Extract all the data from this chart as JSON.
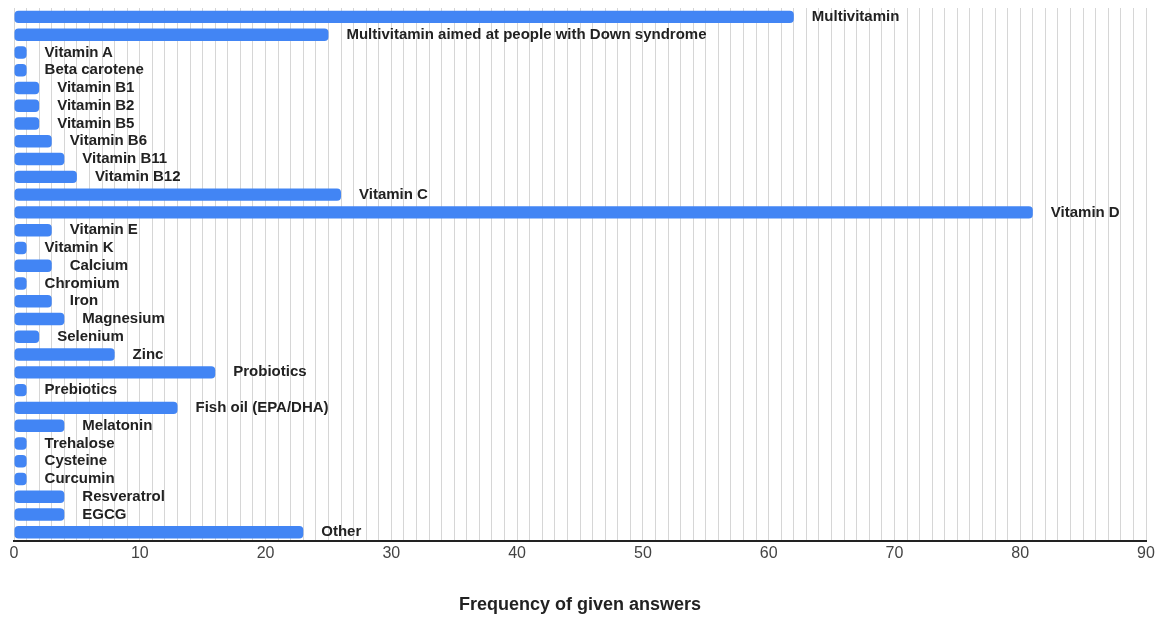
{
  "chart_data": {
    "type": "bar",
    "orientation": "horizontal",
    "xlabel": "Frequency of given answers",
    "tick_labels": "x",
    "grid": "x",
    "legend": false,
    "categories": [
      "Multivitamin",
      "Multivitamin aimed at people with Down syndrome",
      "Vitamin A",
      "Beta carotene",
      "Vitamin B1",
      "Vitamin B2",
      "Vitamin B5",
      "Vitamin B6",
      "Vitamin B11",
      "Vitamin B12",
      "Vitamin C",
      "Vitamin D",
      "Vitamin E",
      "Vitamin K",
      "Calcium",
      "Chromium",
      "Iron",
      "Magnesium",
      "Selenium",
      "Zinc",
      "Probiotics",
      "Prebiotics",
      "Fish oil (EPA/DHA)",
      "Melatonin",
      "Trehalose",
      "Cysteine",
      "Curcumin",
      "Resveratrol",
      "EGCG",
      "Other"
    ],
    "values": [
      62,
      25,
      1,
      1,
      2,
      2,
      2,
      3,
      4,
      5,
      26,
      81,
      3,
      1,
      3,
      1,
      3,
      4,
      2,
      8,
      16,
      1,
      13,
      4,
      1,
      1,
      1,
      4,
      4,
      23
    ],
    "color": "#4285f4",
    "xlim": [
      0,
      90
    ],
    "xticks": [
      0,
      {
        "value": 1,
        "label": null
      },
      {
        "value": 2,
        "label": null
      },
      {
        "value": 3,
        "label": null
      },
      {
        "value": 4,
        "label": null
      },
      {
        "value": 5,
        "label": null
      },
      {
        "value": 6,
        "label": null
      },
      {
        "value": 7,
        "label": null
      },
      {
        "value": 8,
        "label": null
      },
      {
        "value": 9,
        "label": null
      },
      10,
      {
        "value": 11,
        "label": null
      },
      {
        "value": 12,
        "label": null
      },
      {
        "value": 13,
        "label": null
      },
      {
        "value": 14,
        "label": null
      },
      {
        "value": 15,
        "label": null
      },
      {
        "value": 16,
        "label": null
      },
      {
        "value": 17,
        "label": null
      },
      {
        "value": 18,
        "label": null
      },
      {
        "value": 19,
        "label": null
      },
      20,
      {
        "value": 21,
        "label": null
      },
      {
        "value": 22,
        "label": null
      },
      {
        "value": 23,
        "label": null
      },
      {
        "value": 24,
        "label": null
      },
      {
        "value": 25,
        "label": null
      },
      {
        "value": 26,
        "label": null
      },
      {
        "value": 27,
        "label": null
      },
      {
        "value": 28,
        "label": null
      },
      {
        "value": 29,
        "label": null
      },
      30,
      {
        "value": 31,
        "label": null
      },
      {
        "value": 32,
        "label": null
      },
      {
        "value": 33,
        "label": null
      },
      {
        "value": 34,
        "label": null
      },
      {
        "value": 35,
        "label": null
      },
      {
        "value": 36,
        "label": null
      },
      {
        "value": 37,
        "label": null
      },
      {
        "value": 38,
        "label": null
      },
      {
        "value": 39,
        "label": null
      },
      40,
      {
        "value": 41,
        "label": null
      },
      {
        "value": 42,
        "label": null
      },
      {
        "value": 43,
        "label": null
      },
      {
        "value": 44,
        "label": null
      },
      {
        "value": 45,
        "label": null
      },
      {
        "value": 46,
        "label": null
      },
      {
        "value": 47,
        "label": null
      },
      {
        "value": 48,
        "label": null
      },
      {
        "value": 49,
        "label": null
      },
      50,
      {
        "value": 51,
        "label": null
      },
      {
        "value": 52,
        "label": null
      },
      {
        "value": 53,
        "label": null
      },
      {
        "value": 54,
        "label": null
      },
      {
        "value": 55,
        "label": null
      },
      {
        "value": 56,
        "label": null
      },
      {
        "value": 57,
        "label": null
      },
      {
        "value": 58,
        "label": null
      },
      {
        "value": 59,
        "label": null
      },
      60,
      {
        "value": 61,
        "label": null
      },
      {
        "value": 62,
        "label": null
      },
      {
        "value": 63,
        "label": null
      },
      {
        "value": 64,
        "label": null
      },
      {
        "value": 65,
        "label": null
      },
      {
        "value": 66,
        "label": null
      },
      {
        "value": 67,
        "label": null
      },
      {
        "value": 68,
        "label": null
      },
      {
        "value": 69,
        "label": null
      },
      70,
      {
        "value": 71,
        "label": null
      },
      {
        "value": 72,
        "label": null
      },
      {
        "value": 73,
        "label": null
      },
      {
        "value": 74,
        "label": null
      },
      {
        "value": 75,
        "label": null
      },
      {
        "value": 76,
        "label": null
      },
      {
        "value": 77,
        "label": null
      },
      {
        "value": 78,
        "label": null
      },
      {
        "value": 79,
        "label": null
      },
      80,
      {
        "value": 81,
        "label": null
      },
      {
        "value": 82,
        "label": null
      },
      {
        "value": 83,
        "label": null
      },
      {
        "value": 84,
        "label": null
      },
      {
        "value": 85,
        "label": null
      },
      {
        "value": 86,
        "label": null
      },
      {
        "value": 87,
        "label": null
      },
      {
        "value": 88,
        "label": null
      },
      {
        "value": 89,
        "label": null
      },
      90
    ]
  }
}
